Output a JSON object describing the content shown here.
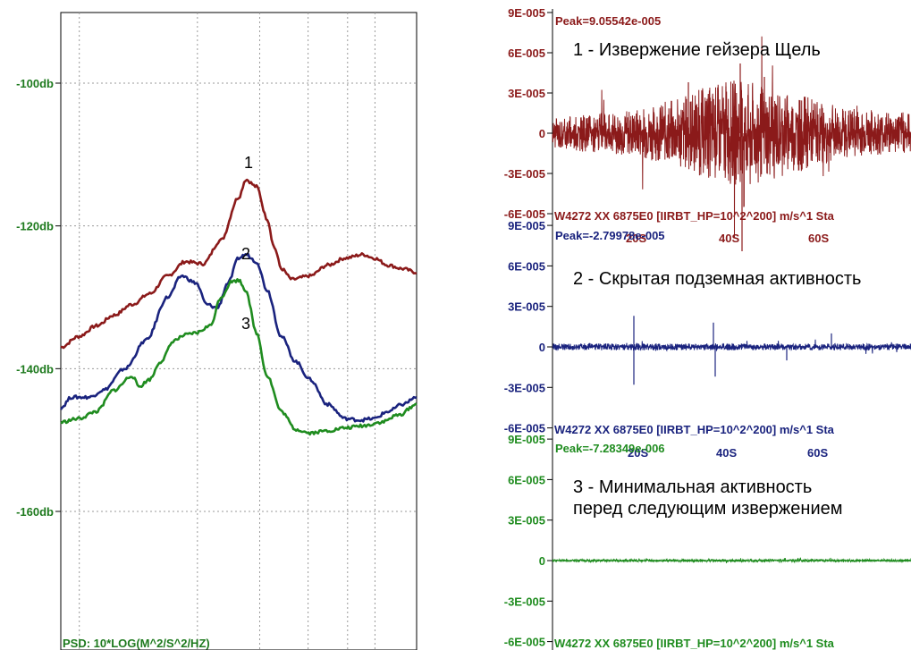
{
  "colors": {
    "psd1": "#8b1a1a",
    "psd2": "#1a237e",
    "psd3": "#1f8c1f",
    "axis_label": "#1e7a1e",
    "grid": "#9a9a9a"
  },
  "psd_chart": {
    "y_ticks": [
      "-100db",
      "-120db",
      "-140db",
      "-160db"
    ],
    "y_tick_values": [
      -100,
      -120,
      -140,
      -160
    ],
    "ylim": [
      -190,
      -90
    ],
    "xlim": [
      0,
      1
    ],
    "units_label": "PSD: 10*LOG(M^2/S^2/HZ)",
    "curve_numbers": [
      "1",
      "2",
      "3"
    ]
  },
  "wave_panels": [
    {
      "title": "1 - Извержение гейзера  Щель",
      "peak_label": "Peak=9.05542e-005",
      "footer_label": "W4272 XX 6875E0  [IIRBT_HP=10^2^200] m/s^1 Sta",
      "y_ticks": [
        "9E-005",
        "6E-005",
        "3E-005",
        "0",
        "-3E-005",
        "-6E-005"
      ],
      "x_ticks": [
        "20S",
        "40S",
        "60S"
      ]
    },
    {
      "title": "2 - Скрытая подземная активность",
      "peak_label": "Peak=-2.79978e-005",
      "footer_label": "W4272 XX 6875E0  [IIRBT_HP=10^2^200] m/s^1 Sta",
      "y_ticks": [
        "9E-005",
        "6E-005",
        "3E-005",
        "0",
        "-3E-005",
        "-6E-005"
      ],
      "x_ticks": [
        "20S",
        "40S",
        "60S"
      ]
    },
    {
      "title_line1": "3 - Минимальная активность",
      "title_line2": "перед следующим извержением",
      "peak_label": "Peak=-7.28349e-006",
      "footer_label": "W4272 XX 6875E0  [IIRBT_HP=10^2^200] m/s^1 Sta",
      "y_ticks": [
        "9E-005",
        "6E-005",
        "3E-005",
        "0",
        "-3E-005",
        "-6E-005"
      ]
    }
  ],
  "chart_data": [
    {
      "type": "line",
      "ylim": [
        -190,
        -90
      ],
      "xlim": [
        0,
        1
      ],
      "y_ticks": [
        -100,
        -120,
        -140,
        -160
      ],
      "grid": true,
      "series": [
        {
          "name": "1",
          "x": [
            0,
            0.05,
            0.1,
            0.15,
            0.2,
            0.25,
            0.3,
            0.35,
            0.4,
            0.45,
            0.5,
            0.52,
            0.55,
            0.58,
            0.6,
            0.62,
            0.65,
            0.7,
            0.75,
            0.8,
            0.85,
            0.88,
            0.92,
            0.96,
            1.0
          ],
          "y": [
            -137,
            -135.5,
            -134,
            -132.5,
            -131,
            -129.5,
            -127,
            -125,
            -125.3,
            -122,
            -116,
            -113.5,
            -114.5,
            -119,
            -123,
            -126,
            -127.5,
            -127,
            -125.5,
            -124.5,
            -124,
            -124.5,
            -125.5,
            -126,
            -126.5
          ]
        },
        {
          "name": "2",
          "x": [
            0,
            0.03,
            0.08,
            0.12,
            0.18,
            0.24,
            0.3,
            0.34,
            0.38,
            0.41,
            0.44,
            0.47,
            0.5,
            0.52,
            0.55,
            0.58,
            0.62,
            0.66,
            0.7,
            0.75,
            0.8,
            0.84,
            0.88,
            0.92,
            0.96,
            1.0
          ],
          "y": [
            -145.5,
            -144,
            -144,
            -143,
            -140,
            -136,
            -130,
            -127,
            -128,
            -131,
            -131.5,
            -128,
            -124.5,
            -124,
            -125,
            -129,
            -135.5,
            -139,
            -141.5,
            -145,
            -147,
            -147.2,
            -147,
            -146,
            -145,
            -144
          ]
        },
        {
          "name": "3",
          "x": [
            0,
            0.05,
            0.1,
            0.15,
            0.2,
            0.22,
            0.25,
            0.28,
            0.32,
            0.35,
            0.38,
            0.42,
            0.45,
            0.48,
            0.5,
            0.52,
            0.55,
            0.58,
            0.62,
            0.66,
            0.7,
            0.75,
            0.8,
            0.85,
            0.9,
            0.95,
            1.0
          ],
          "y": [
            -147.5,
            -147,
            -146,
            -143,
            -141,
            -142.5,
            -141.5,
            -139,
            -136,
            -135.3,
            -135,
            -134,
            -130,
            -127.8,
            -127.6,
            -129,
            -135,
            -141,
            -146,
            -148.5,
            -149,
            -148.7,
            -148.3,
            -148,
            -147.5,
            -146.5,
            -145
          ]
        }
      ]
    },
    {
      "type": "line",
      "title": "1 - Извержение гейзера  Щель",
      "ylim": [
        -6e-05,
        9e-05
      ],
      "x_ticks": [
        "20S",
        "40S",
        "60S"
      ],
      "peak": 9.05542e-05,
      "envelope": {
        "t": [
          0,
          0.1,
          0.2,
          0.3,
          0.4,
          0.5,
          0.6,
          0.7,
          0.8,
          0.9,
          1.0
        ],
        "amplitude": [
          1.2e-05,
          1.4e-05,
          1.7e-05,
          2.2e-05,
          3.2e-05,
          4e-05,
          3.6e-05,
          2.8e-05,
          2e-05,
          1.7e-05,
          1.5e-05
        ]
      }
    },
    {
      "type": "line",
      "title": "2 - Скрытая подземная активность",
      "ylim": [
        -6e-05,
        9e-05
      ],
      "x_ticks": [
        "20S",
        "40S",
        "60S"
      ],
      "peak": -2.79978e-05,
      "envelope": {
        "t": [
          0,
          0.25,
          0.5,
          0.75,
          1.0
        ],
        "amplitude": [
          2.5e-06,
          2.5e-06,
          2.5e-06,
          2.5e-06,
          2.5e-06
        ]
      }
    },
    {
      "type": "line",
      "title": "3 - Минимальная активность перед следующим извержением",
      "ylim": [
        -6e-05,
        9e-05
      ],
      "peak": -7.28349e-06,
      "envelope": {
        "t": [
          0,
          0.5,
          1.0
        ],
        "amplitude": [
          1e-06,
          1e-06,
          1e-06
        ]
      }
    }
  ]
}
